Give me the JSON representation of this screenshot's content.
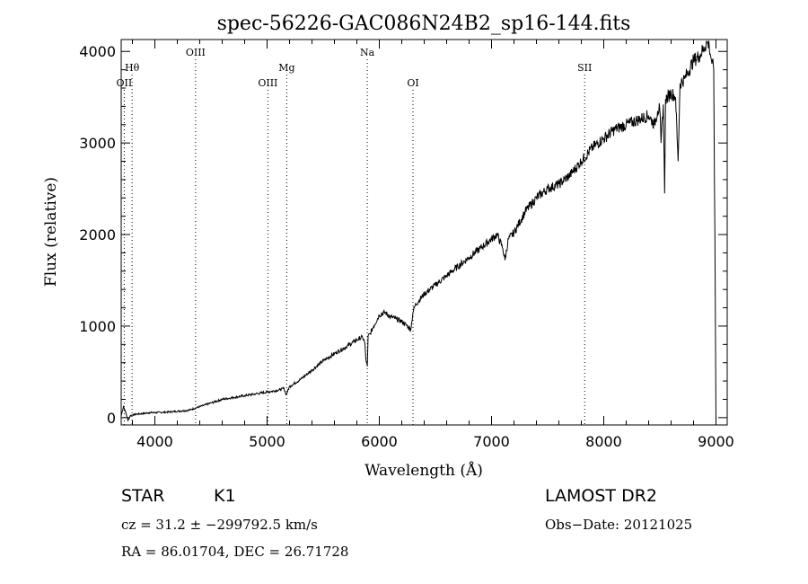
{
  "chart_data": {
    "type": "line",
    "title": "spec-56226-GAC086N24B2_sp16-144.fits",
    "xlabel": "Wavelength (Å)",
    "ylabel": "Flux (relative)",
    "xlim": [
      3700,
      9100
    ],
    "ylim": [
      -80,
      4130
    ],
    "x_ticks": [
      4000,
      5000,
      6000,
      7000,
      8000,
      9000
    ],
    "y_ticks": [
      0,
      1000,
      2000,
      3000,
      4000
    ],
    "grid": false,
    "series": [
      {
        "x": [
          3700,
          3720,
          3740,
          3760,
          3780,
          3800,
          3850,
          3900,
          3950,
          4000,
          4100,
          4200,
          4300,
          4400,
          4500,
          4600,
          4700,
          4800,
          4900,
          5000,
          5100,
          5150,
          5170,
          5200,
          5300,
          5400,
          5500,
          5600,
          5700,
          5800,
          5850,
          5870,
          5880,
          5893,
          5900,
          5920,
          5950,
          6000,
          6050,
          6100,
          6150,
          6200,
          6250,
          6280,
          6300,
          6320,
          6400,
          6500,
          6600,
          6700,
          6800,
          6900,
          7000,
          7050,
          7100,
          7120,
          7150,
          7200,
          7300,
          7400,
          7500,
          7600,
          7700,
          7800,
          7900,
          8000,
          8100,
          8200,
          8300,
          8400,
          8450,
          8480,
          8498,
          8510,
          8530,
          8542,
          8550,
          8570,
          8600,
          8640,
          8662,
          8680,
          8720,
          8800,
          8850,
          8900,
          8920,
          8940,
          8960,
          8980,
          8990,
          9000
        ],
        "y": [
          20,
          120,
          60,
          -30,
          20,
          30,
          40,
          45,
          55,
          55,
          60,
          70,
          80,
          120,
          160,
          200,
          220,
          240,
          260,
          280,
          300,
          320,
          250,
          340,
          420,
          520,
          620,
          700,
          770,
          850,
          880,
          820,
          640,
          560,
          890,
          920,
          1000,
          1120,
          1150,
          1100,
          1080,
          1050,
          1000,
          960,
          1150,
          1230,
          1350,
          1450,
          1550,
          1650,
          1750,
          1850,
          1950,
          2000,
          1850,
          1720,
          1950,
          2020,
          2250,
          2400,
          2500,
          2550,
          2650,
          2800,
          2950,
          3050,
          3150,
          3200,
          3250,
          3300,
          3200,
          3350,
          3380,
          3000,
          3420,
          2450,
          3480,
          3500,
          3550,
          3500,
          2800,
          3650,
          3700,
          3900,
          3950,
          4050,
          4100,
          4060,
          3900,
          3800,
          2000,
          -50
        ]
      }
    ],
    "lines": [
      {
        "label": "Hθ",
        "x": 3797,
        "row": 1
      },
      {
        "label": "OII",
        "x": 3727,
        "row": 2
      },
      {
        "label": "OIII",
        "x": 4363,
        "row": 0
      },
      {
        "label": "OIII",
        "x": 5007,
        "row": 2
      },
      {
        "label": "Mg",
        "x": 5175,
        "row": 1
      },
      {
        "label": "Na",
        "x": 5893,
        "row": 0
      },
      {
        "label": "OI",
        "x": 6300,
        "row": 2
      },
      {
        "label": "SII",
        "x": 7830,
        "row": 1
      }
    ]
  },
  "info": {
    "object_class": "STAR",
    "subclass": "K1",
    "survey": "LAMOST DR2",
    "cz": "cz = 31.2 ± −299792.5 km/s",
    "obs_date": "Obs−Date: 20121025",
    "coords": "RA =  86.01704, DEC =  26.71728"
  }
}
